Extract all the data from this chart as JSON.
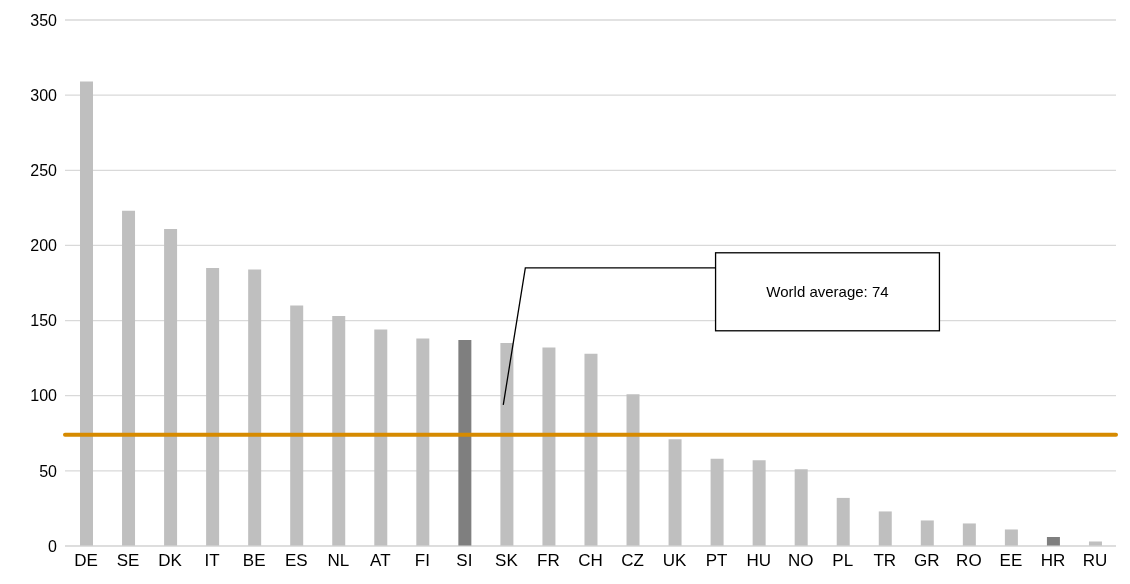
{
  "chart_data": {
    "type": "bar",
    "categories": [
      "DE",
      "SE",
      "DK",
      "IT",
      "BE",
      "ES",
      "NL",
      "AT",
      "FI",
      "SI",
      "SK",
      "FR",
      "CH",
      "CZ",
      "UK",
      "PT",
      "HU",
      "NO",
      "PL",
      "TR",
      "GR",
      "RO",
      "EE",
      "HR",
      "RU"
    ],
    "values": [
      309,
      223,
      211,
      185,
      184,
      160,
      153,
      144,
      138,
      137,
      135,
      132,
      128,
      101,
      71,
      58,
      57,
      51,
      32,
      23,
      17,
      15,
      11,
      6,
      3
    ],
    "colors": [
      "#bfbfbf",
      "#bfbfbf",
      "#bfbfbf",
      "#bfbfbf",
      "#bfbfbf",
      "#bfbfbf",
      "#bfbfbf",
      "#bfbfbf",
      "#bfbfbf",
      "#7f7f7f",
      "#bfbfbf",
      "#bfbfbf",
      "#bfbfbf",
      "#bfbfbf",
      "#bfbfbf",
      "#bfbfbf",
      "#bfbfbf",
      "#bfbfbf",
      "#bfbfbf",
      "#bfbfbf",
      "#bfbfbf",
      "#bfbfbf",
      "#bfbfbf",
      "#7f7f7f",
      "#bfbfbf"
    ],
    "ylim": [
      0,
      350
    ],
    "yticks": [
      0,
      50,
      100,
      150,
      200,
      250,
      300,
      350
    ],
    "grid": "y",
    "ref_lines": [
      {
        "axis": "y",
        "value": 74,
        "color": "#d68a00",
        "line_style": "solid"
      }
    ],
    "annotations": [
      "World average: 74"
    ]
  }
}
